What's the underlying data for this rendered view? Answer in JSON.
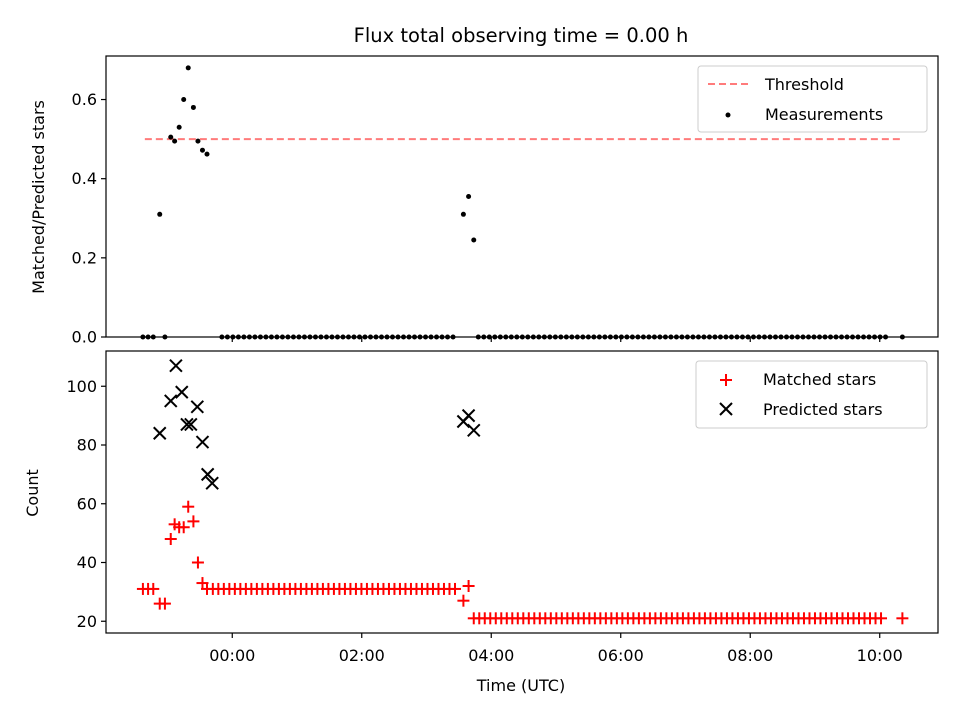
{
  "chart_data": {
    "title": "Flux total observing time = 0.00 h",
    "xlabel": "Time (UTC)",
    "x_unit": "hours (UTC, relative to 00:00)",
    "xlim": [
      -1.95,
      10.9
    ],
    "x_ticks": [
      {
        "value": 0,
        "label": "00:00"
      },
      {
        "value": 2,
        "label": "02:00"
      },
      {
        "value": 4,
        "label": "04:00"
      },
      {
        "value": 6,
        "label": "06:00"
      },
      {
        "value": 8,
        "label": "08:00"
      },
      {
        "value": 10,
        "label": "10:00"
      }
    ],
    "panels": [
      {
        "type": "scatter",
        "ylabel": "Matched/Predicted stars",
        "ylim": [
          0,
          0.71
        ],
        "y_ticks": [
          {
            "value": 0,
            "label": "0.0"
          },
          {
            "value": 0.2,
            "label": "0.2"
          },
          {
            "value": 0.4,
            "label": "0.4"
          },
          {
            "value": 0.6,
            "label": "0.6"
          }
        ],
        "legend_position": "top-right",
        "threshold": {
          "name": "Threshold",
          "value": 0.5,
          "x_range": [
            -1.35,
            10.35
          ],
          "color": "#ff7b7b"
        },
        "series": [
          {
            "name": "Measurements",
            "marker": "dot",
            "color": "#000000",
            "points": [
              [
                -1.38,
                0
              ],
              [
                -1.3,
                0
              ],
              [
                -1.22,
                0
              ],
              [
                -1.12,
                0.31
              ],
              [
                -1.04,
                0
              ],
              [
                -0.95,
                0.505
              ],
              [
                -0.89,
                0.495
              ],
              [
                -0.82,
                0.53
              ],
              [
                -0.75,
                0.6
              ],
              [
                -0.68,
                0.68
              ],
              [
                -0.6,
                0.58
              ],
              [
                -0.53,
                0.495
              ],
              [
                -0.46,
                0.472
              ],
              [
                -0.39,
                0.462
              ]
            ],
            "zero_runs": [
              {
                "start": -0.16,
                "end": 3.4,
                "step": 0.085
              },
              {
                "start": 3.8,
                "end": 10.05,
                "step": 0.085
              },
              {
                "start": 10.35,
                "end": 10.35,
                "step": 0.085
              }
            ],
            "extra_points": [
              [
                3.57,
                0.31
              ],
              [
                3.65,
                0.355
              ],
              [
                3.73,
                0.245
              ]
            ]
          }
        ]
      },
      {
        "type": "scatter",
        "ylabel": "Count",
        "ylim": [
          16,
          112
        ],
        "y_ticks": [
          {
            "value": 20,
            "label": "20"
          },
          {
            "value": 40,
            "label": "40"
          },
          {
            "value": 60,
            "label": "60"
          },
          {
            "value": 80,
            "label": "80"
          },
          {
            "value": 100,
            "label": "100"
          }
        ],
        "legend_position": "top-right",
        "series": [
          {
            "name": "Matched stars",
            "marker": "plus",
            "color": "#ff0000",
            "points": [
              [
                -1.38,
                31
              ],
              [
                -1.3,
                31
              ],
              [
                -1.22,
                31
              ],
              [
                -1.12,
                26
              ],
              [
                -1.04,
                26
              ],
              [
                -0.95,
                48
              ],
              [
                -0.89,
                53
              ],
              [
                -0.82,
                52
              ],
              [
                -0.75,
                52
              ],
              [
                -0.68,
                59
              ],
              [
                -0.6,
                54
              ],
              [
                -0.53,
                40
              ],
              [
                -0.46,
                33
              ],
              [
                -0.39,
                31
              ],
              [
                3.57,
                27
              ],
              [
                3.65,
                32
              ]
            ],
            "runs": [
              {
                "start": -0.3,
                "end": 3.45,
                "step": 0.085,
                "value": 31
              },
              {
                "start": 3.73,
                "end": 10.05,
                "step": 0.085,
                "value": 21
              },
              {
                "start": 10.35,
                "end": 10.35,
                "step": 0.085,
                "value": 21
              }
            ]
          },
          {
            "name": "Predicted stars",
            "marker": "x",
            "color": "#000000",
            "points": [
              [
                -1.12,
                84
              ],
              [
                -0.95,
                95
              ],
              [
                -0.87,
                107
              ],
              [
                -0.78,
                98
              ],
              [
                -0.7,
                87
              ],
              [
                -0.64,
                87
              ],
              [
                -0.54,
                93
              ],
              [
                -0.46,
                81
              ],
              [
                -0.38,
                70
              ],
              [
                -0.31,
                67
              ],
              [
                3.57,
                88
              ],
              [
                3.65,
                90
              ],
              [
                3.73,
                85
              ]
            ]
          }
        ]
      }
    ]
  }
}
